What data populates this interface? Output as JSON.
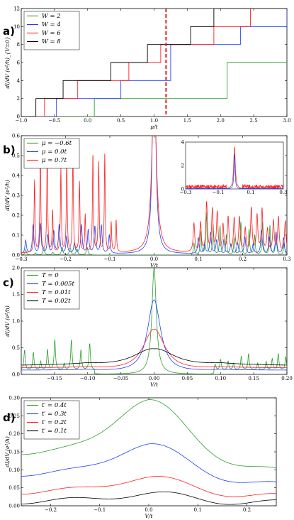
{
  "chart_data": [
    {
      "panel": "a)",
      "type": "line",
      "xlabel": "μ/t",
      "ylabel": "dI/dV (e²/h)_{V=0}",
      "xlim": [
        -1.0,
        3.0
      ],
      "ylim": [
        0,
        12
      ],
      "xticks": [
        "−1.0",
        "−0.5",
        "0.0",
        "0.5",
        "1.0",
        "1.5",
        "2.0",
        "2.5",
        "3.0"
      ],
      "yticks": [
        "0",
        "2",
        "4",
        "6",
        "8",
        "10",
        "12"
      ],
      "legend_position": "top-left",
      "marker_line": {
        "x": 1.18,
        "style": "red-dashed"
      },
      "series": [
        {
          "name": "W = 2",
          "color": "#2ca02c",
          "steps": [
            [
              -1.0,
              0
            ],
            [
              0.1,
              2
            ],
            [
              2.1,
              6
            ],
            [
              3.0,
              6
            ]
          ]
        },
        {
          "name": "W = 4",
          "color": "#1f3fff",
          "steps": [
            [
              -1.0,
              0
            ],
            [
              -0.47,
              2
            ],
            [
              0.5,
              4
            ],
            [
              1.25,
              8
            ],
            [
              2.3,
              10
            ],
            [
              3.0,
              12
            ]
          ]
        },
        {
          "name": "W = 6",
          "color": "#ff2020",
          "steps": [
            [
              -1.0,
              0
            ],
            [
              -0.65,
              2
            ],
            [
              -0.15,
              4
            ],
            [
              0.62,
              6
            ],
            [
              1.1,
              8
            ],
            [
              1.9,
              10
            ],
            [
              2.45,
              12
            ],
            [
              3.0,
              12
            ]
          ]
        },
        {
          "name": "W = 8",
          "color": "#000000",
          "steps": [
            [
              -1.0,
              0
            ],
            [
              -0.78,
              2
            ],
            [
              -0.37,
              4
            ],
            [
              0.35,
              6
            ],
            [
              0.9,
              8
            ],
            [
              1.55,
              10
            ],
            [
              1.9,
              12
            ],
            [
              3.0,
              12
            ]
          ]
        }
      ]
    },
    {
      "panel": "b)",
      "type": "line",
      "xlabel": "V/t",
      "ylabel": "dI/dV (e²/h)",
      "xlim": [
        -0.3,
        0.3
      ],
      "ylim": [
        0,
        0.6
      ],
      "xticks": [
        "−0.3",
        "−0.2",
        "−0.1",
        "0.0",
        "0.1",
        "0.2",
        "0.3"
      ],
      "yticks": [
        "0.0",
        "0.1",
        "0.2",
        "0.3",
        "0.4",
        "0.5",
        "0.6"
      ],
      "legend_position": "top-left",
      "series": [
        {
          "name": "μ = −0.6t",
          "color": "#2ca02c"
        },
        {
          "name": "μ = 0.0t",
          "color": "#1f3fff"
        },
        {
          "name": "μ = 0.7t",
          "color": "#ff2020"
        }
      ],
      "inset": {
        "xlim": [
          -0.3,
          0.3
        ],
        "ylim": [
          0,
          4
        ],
        "xticks": [
          "−0.3",
          "−0.1",
          "0.1",
          "0.3"
        ],
        "yticks": [
          "0",
          "2",
          "4"
        ]
      }
    },
    {
      "panel": "c)",
      "type": "line",
      "xlabel": "V/t",
      "ylabel": "dI/dV (e²/h)",
      "xlim": [
        -0.2,
        0.2
      ],
      "ylim": [
        0,
        2.0
      ],
      "xticks": [
        "−0.15",
        "−0.10",
        "−0.05",
        "0.00",
        "0.05",
        "0.10",
        "0.15",
        "0.20"
      ],
      "yticks": [
        "0.0",
        "0.5",
        "1.0",
        "1.5",
        "2.0"
      ],
      "legend_position": "top-left",
      "series": [
        {
          "name": "T = 0",
          "color": "#2ca02c",
          "peak": 2.0,
          "width": 0.004
        },
        {
          "name": "T = 0.005t",
          "color": "#1f3fff",
          "peak": 1.4,
          "width": 0.012
        },
        {
          "name": "T = 0.01t",
          "color": "#ff2020",
          "peak": 0.85,
          "width": 0.02
        },
        {
          "name": "T = 0.02t",
          "color": "#000000",
          "peak": 0.48,
          "width": 0.04
        }
      ]
    },
    {
      "panel": "d)",
      "type": "line",
      "xlabel": "V/t",
      "ylabel": "dI/dV (e²/h)",
      "xlim": [
        -0.26,
        0.26
      ],
      "ylim": [
        0,
        0.3
      ],
      "xticks": [
        "−0.2",
        "−0.1",
        "0.0",
        "0.1",
        "0.2"
      ],
      "yticks": [
        "0.00",
        "0.05",
        "0.10",
        "0.15",
        "0.20",
        "0.25",
        "0.30"
      ],
      "legend_position": "top-left",
      "series": [
        {
          "name": "t′ = 0.4t",
          "color": "#2ca02c",
          "peak": 0.295,
          "base": 0.15
        },
        {
          "name": "t′ = 0.3t",
          "color": "#1f3fff",
          "peak": 0.172,
          "base": 0.09
        },
        {
          "name": "t′ = 0.2t",
          "color": "#ff2020",
          "peak": 0.08,
          "base": 0.04
        },
        {
          "name": "t′ = 0.1t",
          "color": "#000000",
          "peak": 0.035,
          "base": 0.013
        }
      ]
    }
  ]
}
